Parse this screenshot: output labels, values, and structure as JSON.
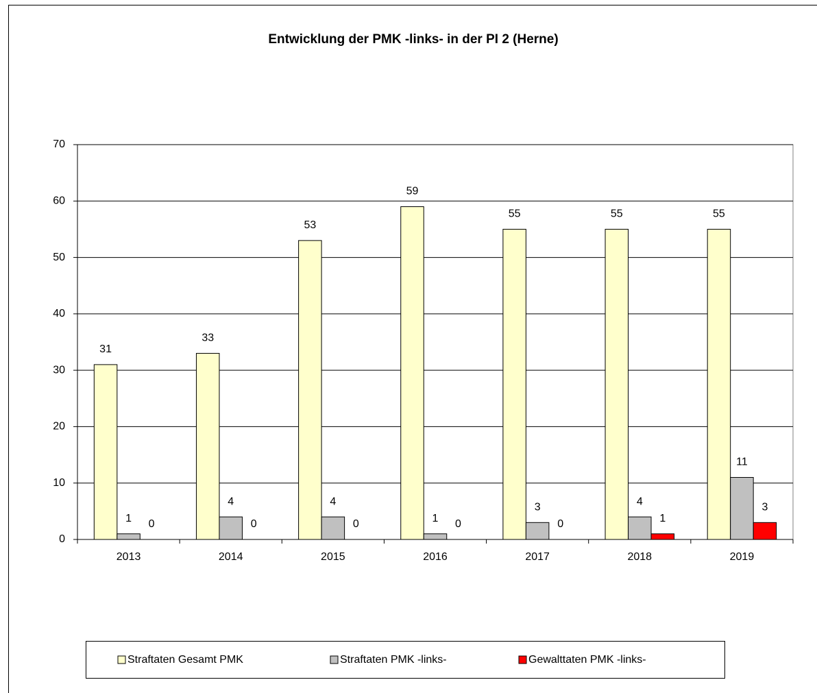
{
  "chart_data": {
    "type": "bar",
    "title": "Entwicklung der PMK -links- in der PI 2 (Herne)",
    "categories": [
      "2013",
      "2014",
      "2015",
      "2016",
      "2017",
      "2018",
      "2019"
    ],
    "series": [
      {
        "name": "Straftaten Gesamt PMK",
        "color": "#ffffcc",
        "values": [
          31,
          33,
          53,
          59,
          55,
          55,
          55
        ]
      },
      {
        "name": "Straftaten PMK -links-",
        "color": "#c0c0c0",
        "values": [
          1,
          4,
          4,
          1,
          3,
          4,
          11
        ]
      },
      {
        "name": "Gewalttaten PMK -links-",
        "color": "#ff0000",
        "values": [
          0,
          0,
          0,
          0,
          0,
          1,
          3
        ]
      }
    ],
    "ylim": [
      0,
      70
    ],
    "yticks": [
      0,
      10,
      20,
      30,
      40,
      50,
      60,
      70
    ],
    "grid": true,
    "legend": "bottom"
  }
}
